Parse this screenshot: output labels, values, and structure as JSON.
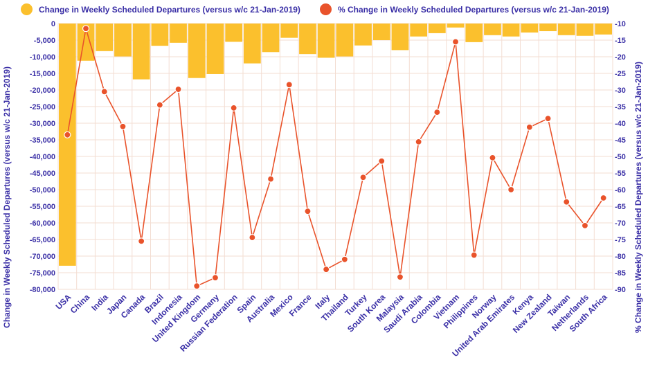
{
  "chart_data": {
    "type": "bar+line",
    "legend": [
      {
        "label": "Change in Weekly Scheduled Departures (versus w/c 21-Jan-2019)",
        "color": "#fbc02d",
        "marker": "circle"
      },
      {
        "label": "% Change in Weekly Scheduled Departures (versus w/c 21-Jan-2019)",
        "color": "#e9532b",
        "marker": "circle"
      }
    ],
    "categories": [
      "USA",
      "China",
      "India",
      "Japan",
      "Canada",
      "Brazil",
      "Indonesia",
      "United Kingdom",
      "Germany",
      "Russian Federation",
      "Spain",
      "Australia",
      "Mexico",
      "France",
      "Italy",
      "Thailand",
      "Turkey",
      "South Korea",
      "Malaysia",
      "Saudi Arabia",
      "Colombia",
      "Vietnam",
      "Philippines",
      "Norway",
      "United Arab Emirates",
      "Kenya",
      "New Zealand",
      "Taiwan",
      "Netherlands",
      "South Africa"
    ],
    "ylabel_left": "Change in Weekly Scheduled Departures (versus w/c 21-Jan-2019)",
    "ylabel_right": "% Change in Weekly Scheduled Departures (versus w/c 21-Jan-2019)",
    "left_axis": {
      "ticks": [
        "0",
        "-5,000",
        "-10,000",
        "-15,000",
        "-20,000",
        "-25,000",
        "-30,000",
        "-35,000",
        "-40,000",
        "-45,000",
        "-50,000",
        "-55,000",
        "-60,000",
        "-65,000",
        "-70,000",
        "-75,000",
        "-80,000"
      ],
      "ylim": [
        -80000,
        0
      ]
    },
    "right_axis": {
      "ticks": [
        "-10",
        "-15",
        "-20",
        "-25",
        "-30",
        "-35",
        "-40",
        "-45",
        "-50",
        "-55",
        "-60",
        "-65",
        "-70",
        "-75",
        "-80",
        "-85",
        "-90"
      ],
      "ylim": [
        -90,
        -10
      ]
    },
    "grid": true,
    "series": [
      {
        "name": "Change in Weekly Scheduled Departures (versus w/c 21-Jan-2019)",
        "type": "bar",
        "axis": "left",
        "color": "#fbc02d",
        "values": [
          -72900,
          -11200,
          -8300,
          -9900,
          -16800,
          -6700,
          -5800,
          -16400,
          -15200,
          -5500,
          -12000,
          -8600,
          -4300,
          -9200,
          -10300,
          -9900,
          -6600,
          -5000,
          -8000,
          -3900,
          -2900,
          -1200,
          -5600,
          -3500,
          -3900,
          -2700,
          -2300,
          -3500,
          -3700,
          -3300
        ]
      },
      {
        "name": "% Change in Weekly Scheduled Departures (versus w/c 21-Jan-2019)",
        "type": "line",
        "axis": "right",
        "color": "#e9532b",
        "values": [
          -43.5,
          -11.5,
          -30.5,
          -41,
          -75.5,
          -34.5,
          -29.8,
          -89,
          -86.5,
          -35.4,
          -74.4,
          -56.8,
          -28.4,
          -66.5,
          -84,
          -81,
          -56.3,
          -51.4,
          -86.3,
          -45.6,
          -36.7,
          -15.5,
          -79.7,
          -50.4,
          -60,
          -41.2,
          -38.6,
          -63.7,
          -70.8,
          -62.5
        ]
      }
    ]
  }
}
